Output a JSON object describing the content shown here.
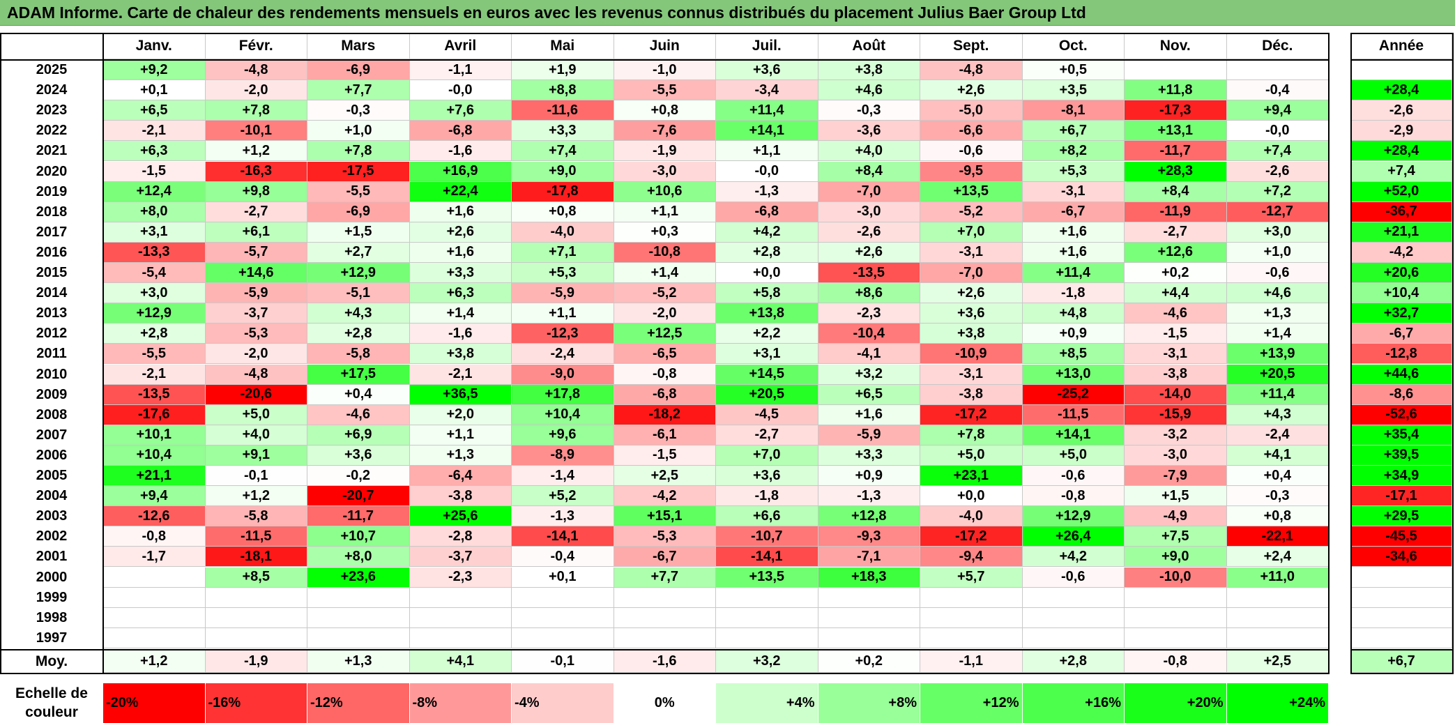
{
  "title": "ADAM Informe. Carte de chaleur des rendements mensuels en euros avec les revenus connus distribués du placement Julius Baer Group Ltd",
  "chart_data": {
    "type": "heatmap",
    "columns": [
      "Janv.",
      "Févr.",
      "Mars",
      "Avril",
      "Mai",
      "Juin",
      "Juil.",
      "Août",
      "Sept.",
      "Oct.",
      "Nov.",
      "Déc."
    ],
    "annual_header": "Année",
    "rows": [
      {
        "year": "2025",
        "values": [
          9.2,
          -4.8,
          -6.9,
          -1.1,
          1.9,
          -1.0,
          3.6,
          3.8,
          -4.8,
          0.5,
          null,
          null
        ],
        "annual": null
      },
      {
        "year": "2024",
        "values": [
          0.1,
          -2.0,
          7.7,
          -0.0,
          8.8,
          -5.5,
          -3.4,
          4.6,
          2.6,
          3.5,
          11.8,
          -0.4
        ],
        "annual": 28.4
      },
      {
        "year": "2023",
        "values": [
          6.5,
          7.8,
          -0.3,
          7.6,
          -11.6,
          0.8,
          11.4,
          -0.3,
          -5.0,
          -8.1,
          -17.3,
          9.4
        ],
        "annual": -2.6
      },
      {
        "year": "2022",
        "values": [
          -2.1,
          -10.1,
          1.0,
          -6.8,
          3.3,
          -7.6,
          14.1,
          -3.6,
          -6.6,
          6.7,
          13.1,
          -0.0
        ],
        "annual": -2.9
      },
      {
        "year": "2021",
        "values": [
          6.3,
          1.2,
          7.8,
          -1.6,
          7.4,
          -1.9,
          1.1,
          4.0,
          -0.6,
          8.2,
          -11.7,
          7.4
        ],
        "annual": 28.4
      },
      {
        "year": "2020",
        "values": [
          -1.5,
          -16.3,
          -17.5,
          16.9,
          9.0,
          -3.0,
          -0.0,
          8.4,
          -9.5,
          5.3,
          28.3,
          -2.6
        ],
        "annual": 7.4
      },
      {
        "year": "2019",
        "values": [
          12.4,
          9.8,
          -5.5,
          22.4,
          -17.8,
          10.6,
          -1.3,
          -7.0,
          13.5,
          -3.1,
          8.4,
          7.2
        ],
        "annual": 52.0
      },
      {
        "year": "2018",
        "values": [
          8.0,
          -2.7,
          -6.9,
          1.6,
          0.8,
          1.1,
          -6.8,
          -3.0,
          -5.2,
          -6.7,
          -11.9,
          -12.7
        ],
        "annual": -36.7
      },
      {
        "year": "2017",
        "values": [
          3.1,
          6.1,
          1.5,
          2.6,
          -4.0,
          0.3,
          4.2,
          -2.6,
          7.0,
          1.6,
          -2.7,
          3.0
        ],
        "annual": 21.1
      },
      {
        "year": "2016",
        "values": [
          -13.3,
          -5.7,
          2.7,
          1.6,
          7.1,
          -10.8,
          2.8,
          2.6,
          -3.1,
          1.6,
          12.6,
          1.0
        ],
        "annual": -4.2
      },
      {
        "year": "2015",
        "values": [
          -5.4,
          14.6,
          12.9,
          3.3,
          5.3,
          1.4,
          0.0,
          -13.5,
          -7.0,
          11.4,
          0.2,
          -0.6
        ],
        "annual": 20.6
      },
      {
        "year": "2014",
        "values": [
          3.0,
          -5.9,
          -5.1,
          6.3,
          -5.9,
          -5.2,
          5.8,
          8.6,
          2.6,
          -1.8,
          4.4,
          4.6
        ],
        "annual": 10.4
      },
      {
        "year": "2013",
        "values": [
          12.9,
          -3.7,
          4.3,
          1.4,
          1.1,
          -2.0,
          13.8,
          -2.3,
          3.6,
          4.8,
          -4.6,
          1.3
        ],
        "annual": 32.7
      },
      {
        "year": "2012",
        "values": [
          2.8,
          -5.3,
          2.8,
          -1.6,
          -12.3,
          12.5,
          2.2,
          -10.4,
          3.8,
          0.9,
          -1.5,
          1.4
        ],
        "annual": -6.7
      },
      {
        "year": "2011",
        "values": [
          -5.5,
          -2.0,
          -5.8,
          3.8,
          -2.4,
          -6.5,
          3.1,
          -4.1,
          -10.9,
          8.5,
          -3.1,
          13.9
        ],
        "annual": -12.8
      },
      {
        "year": "2010",
        "values": [
          -2.1,
          -4.8,
          17.5,
          -2.1,
          -9.0,
          -0.8,
          14.5,
          3.2,
          -3.1,
          13.0,
          -3.8,
          20.5
        ],
        "annual": 44.6
      },
      {
        "year": "2009",
        "values": [
          -13.5,
          -20.6,
          0.4,
          36.5,
          17.8,
          -6.8,
          20.5,
          6.5,
          -3.8,
          -25.2,
          -14.0,
          11.4
        ],
        "annual": -8.6
      },
      {
        "year": "2008",
        "values": [
          -17.6,
          5.0,
          -4.6,
          2.0,
          10.4,
          -18.2,
          -4.5,
          1.6,
          -17.2,
          -11.5,
          -15.9,
          4.3
        ],
        "annual": -52.6
      },
      {
        "year": "2007",
        "values": [
          10.1,
          4.0,
          6.9,
          1.1,
          9.6,
          -6.1,
          -2.7,
          -5.9,
          7.8,
          14.1,
          -3.2,
          -2.4
        ],
        "annual": 35.4
      },
      {
        "year": "2006",
        "values": [
          10.4,
          9.1,
          3.6,
          1.3,
          -8.9,
          -1.5,
          7.0,
          3.3,
          5.0,
          5.0,
          -3.0,
          4.1
        ],
        "annual": 39.5
      },
      {
        "year": "2005",
        "values": [
          21.1,
          -0.1,
          -0.2,
          -6.4,
          -1.4,
          2.5,
          3.6,
          0.9,
          23.1,
          -0.6,
          -7.9,
          0.4
        ],
        "annual": 34.9
      },
      {
        "year": "2004",
        "values": [
          9.4,
          1.2,
          -20.7,
          -3.8,
          5.2,
          -4.2,
          -1.8,
          -1.3,
          0.0,
          -0.8,
          1.5,
          -0.3
        ],
        "annual": -17.1
      },
      {
        "year": "2003",
        "values": [
          -12.6,
          -5.8,
          -11.7,
          25.6,
          -1.3,
          15.1,
          6.6,
          12.8,
          -4.0,
          12.9,
          -4.9,
          0.8
        ],
        "annual": 29.5
      },
      {
        "year": "2002",
        "values": [
          -0.8,
          -11.5,
          10.7,
          -2.8,
          -14.1,
          -5.3,
          -10.7,
          -9.3,
          -17.2,
          26.4,
          7.5,
          -22.1
        ],
        "annual": -45.5
      },
      {
        "year": "2001",
        "values": [
          -1.7,
          -18.1,
          8.0,
          -3.7,
          -0.4,
          -6.7,
          -14.1,
          -7.1,
          -9.4,
          4.2,
          9.0,
          2.4
        ],
        "annual": -34.6
      },
      {
        "year": "2000",
        "values": [
          null,
          8.5,
          23.6,
          -2.3,
          0.1,
          7.7,
          13.5,
          18.3,
          5.7,
          -0.6,
          -10.0,
          11.0
        ],
        "annual": null
      },
      {
        "year": "1999",
        "values": [
          null,
          null,
          null,
          null,
          null,
          null,
          null,
          null,
          null,
          null,
          null,
          null
        ],
        "annual": null
      },
      {
        "year": "1998",
        "values": [
          null,
          null,
          null,
          null,
          null,
          null,
          null,
          null,
          null,
          null,
          null,
          null
        ],
        "annual": null
      },
      {
        "year": "1997",
        "values": [
          null,
          null,
          null,
          null,
          null,
          null,
          null,
          null,
          null,
          null,
          null,
          null
        ],
        "annual": null
      }
    ],
    "average": {
      "label": "Moy.",
      "values": [
        1.2,
        -1.9,
        1.3,
        4.1,
        -0.1,
        -1.6,
        3.2,
        0.2,
        -1.1,
        2.8,
        -0.8,
        2.5
      ],
      "annual": 6.7
    },
    "color_scale": {
      "label": "Echelle de\ncouleur",
      "stops": [
        {
          "label": "-20%",
          "value": -20,
          "color": "#ff0000"
        },
        {
          "label": "-16%",
          "value": -16,
          "color": "#ff3333"
        },
        {
          "label": "-12%",
          "value": -12,
          "color": "#ff6666"
        },
        {
          "label": "-8%",
          "value": -8,
          "color": "#ff9999"
        },
        {
          "label": "-4%",
          "value": -4,
          "color": "#ffcccc"
        },
        {
          "label": "0%",
          "value": 0,
          "color": "#ffffff"
        },
        {
          "label": "+4%",
          "value": 4,
          "color": "#ccffcc"
        },
        {
          "label": "+8%",
          "value": 8,
          "color": "#99ff99"
        },
        {
          "label": "+12%",
          "value": 12,
          "color": "#66ff66"
        },
        {
          "label": "+16%",
          "value": 16,
          "color": "#4dff4d"
        },
        {
          "label": "+20%",
          "value": 20,
          "color": "#1aff1a"
        },
        {
          "label": "+24%",
          "value": 24,
          "color": "#00ff00"
        }
      ]
    }
  }
}
